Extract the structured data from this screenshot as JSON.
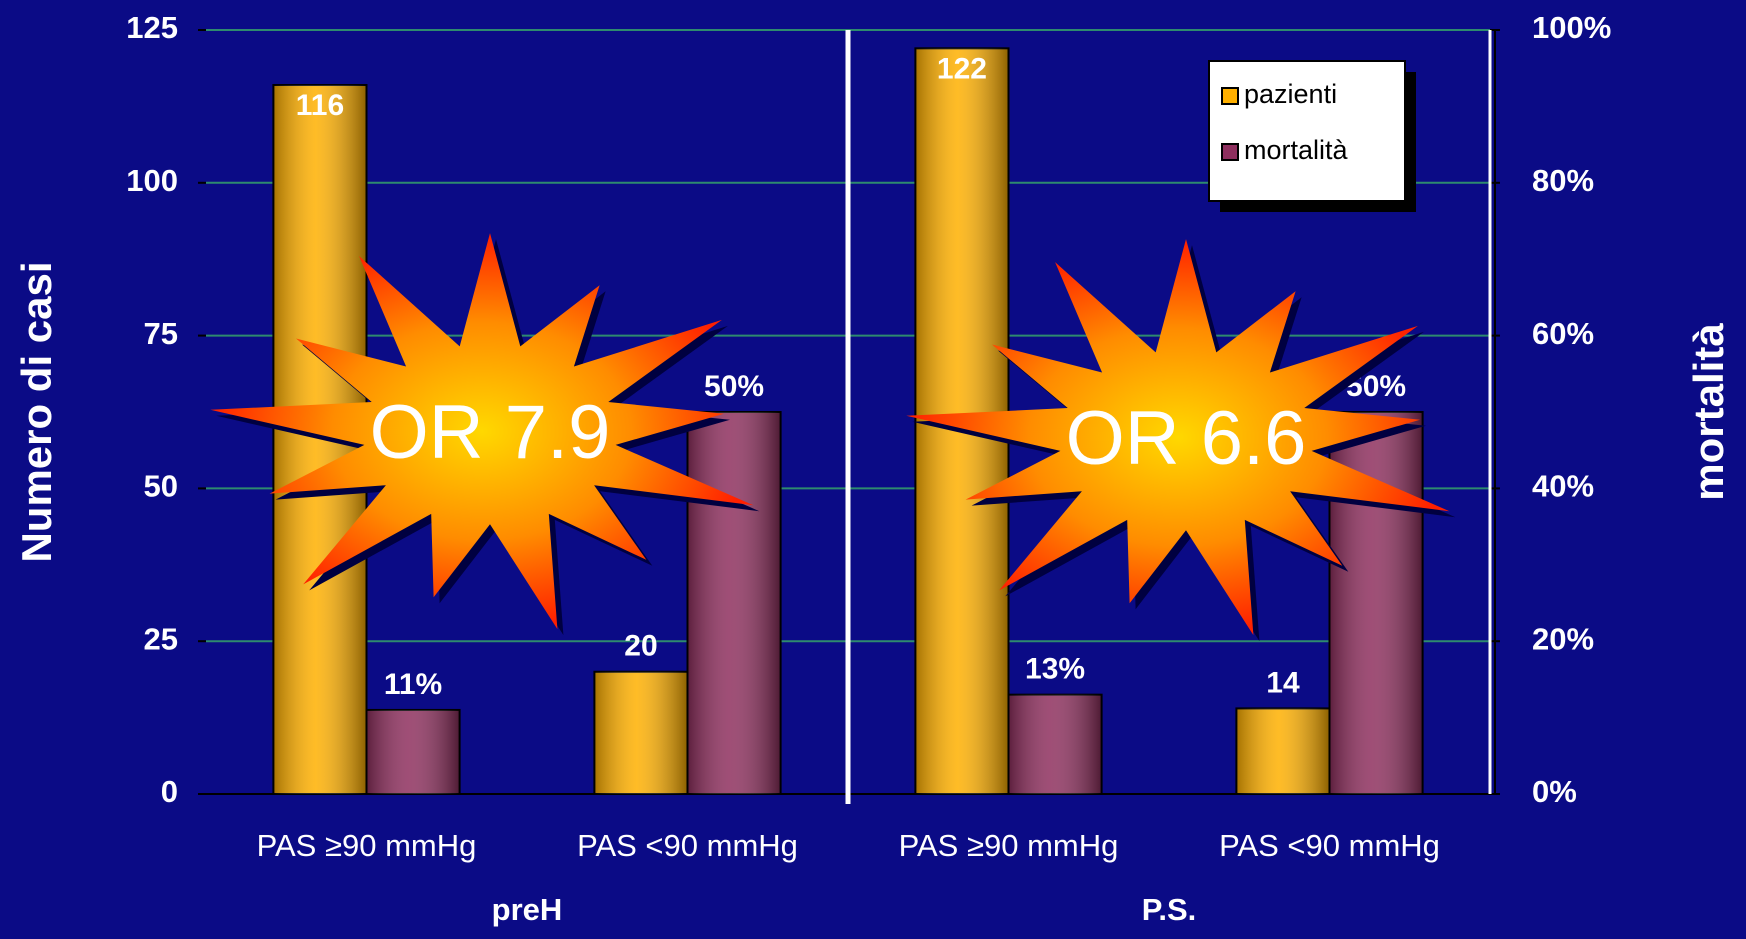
{
  "chart_data": {
    "type": "bar",
    "categories": [
      "PAS ≥90 mmHg",
      "PAS <90 mmHg",
      "PAS ≥90 mmHg",
      "PAS <90 mmHg"
    ],
    "groups": [
      "preH",
      "P.S."
    ],
    "series": [
      {
        "name": "pazienti",
        "color": "#ffb000",
        "values": [
          116,
          20,
          122,
          14
        ]
      },
      {
        "name": "mortalità",
        "color": "#8e2f5e",
        "axis": "y2",
        "values": [
          11,
          50,
          13,
          50
        ],
        "value_labels": [
          "11%",
          "50%",
          "13%",
          "50%"
        ]
      }
    ],
    "ylabel": "Numero di casi",
    "y2label": "mortalità",
    "ylim": [
      0,
      125
    ],
    "yticks": [
      0,
      25,
      50,
      75,
      100,
      125
    ],
    "y2lim": [
      0,
      100
    ],
    "y2ticks": [
      {
        "value": 0,
        "label": "0%"
      },
      {
        "value": 20,
        "label": "20%"
      },
      {
        "value": 40,
        "label": "40%"
      },
      {
        "value": 60,
        "label": "60%"
      },
      {
        "value": 80,
        "label": "80%"
      },
      {
        "value": 100,
        "label": "100%"
      }
    ],
    "grid": true,
    "grid_color": "#2e8b6e",
    "legend": "upper right",
    "annotations": [
      "OR 7.9",
      "OR 6.6"
    ]
  }
}
